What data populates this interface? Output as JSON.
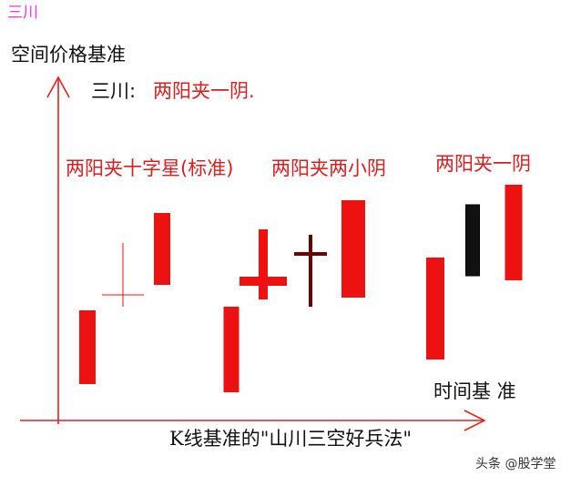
{
  "corner_label": "三川",
  "y_axis_label": "空间价格基准",
  "legend_prefix": "三川:",
  "legend_text": "两阳夹一阴.",
  "groups": [
    {
      "label": "两阳夹十字星(标准)"
    },
    {
      "label": "两阳夹两小阴"
    },
    {
      "label": "两阳夹一阴"
    }
  ],
  "x_axis_label": "时间基 准",
  "caption": "K线基准的\"山川三空好兵法\"",
  "credit": "头条 @股学堂",
  "colors": {
    "bull": "#ee1111",
    "bear": "#111111",
    "axis": "#dd2222",
    "label": "#d42020",
    "corner": "#ff33cc"
  },
  "candles": [
    {
      "group": 1,
      "kind": "bull",
      "open": 112,
      "close": 193
    },
    {
      "group": 1,
      "kind": "doji",
      "open": 210,
      "close": 210,
      "high": 267,
      "low": 197
    },
    {
      "group": 1,
      "kind": "bull",
      "open": 221,
      "close": 300
    },
    {
      "group": 2,
      "kind": "bull",
      "open": 103,
      "close": 197
    },
    {
      "group": 2,
      "kind": "cross",
      "open": 225,
      "close": 225,
      "high": 282,
      "low": 205
    },
    {
      "group": 2,
      "kind": "bear_cross",
      "open": 255,
      "close": 255,
      "high": 276,
      "low": 197
    },
    {
      "group": 2,
      "kind": "bull",
      "open": 207,
      "close": 314
    },
    {
      "group": 3,
      "kind": "bull",
      "open": 139,
      "close": 251
    },
    {
      "group": 3,
      "kind": "bear",
      "open": 309,
      "close": 231
    },
    {
      "group": 3,
      "kind": "bull",
      "open": 226,
      "close": 331
    }
  ]
}
